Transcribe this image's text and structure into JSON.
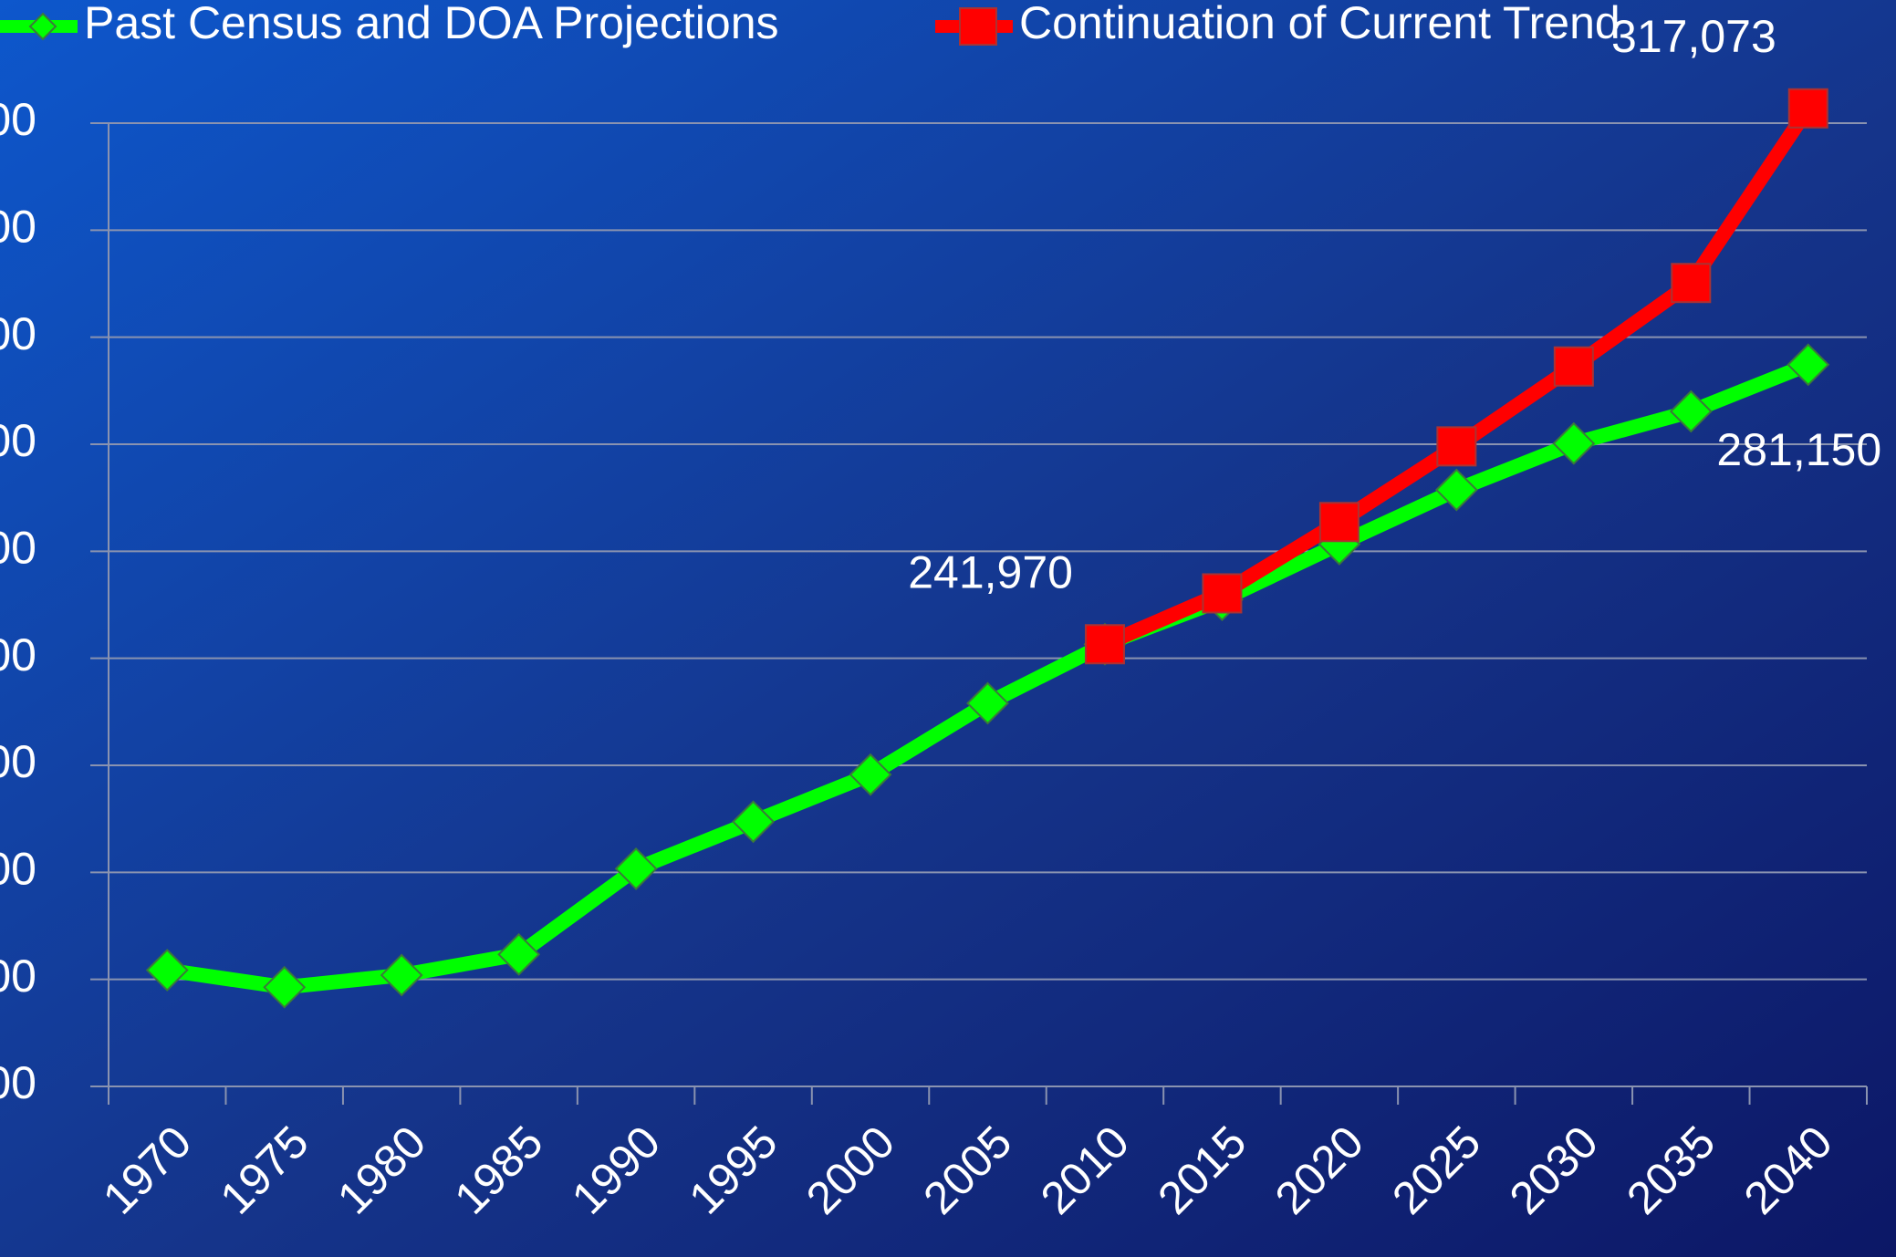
{
  "chart_data": {
    "type": "line",
    "categories": [
      "1970",
      "1975",
      "1980",
      "1985",
      "1990",
      "1995",
      "2000",
      "2005",
      "2010",
      "2015",
      "2020",
      "2025",
      "2030",
      "2035",
      "2040"
    ],
    "series": [
      {
        "name": "Past Census and DOA Projections",
        "color": "#00ff00",
        "marker": "diamond",
        "values": [
          196300,
          193900,
          195600,
          198500,
          210500,
          217100,
          223700,
          233700,
          241970,
          248200,
          256000,
          263600,
          270100,
          274600,
          281150
        ],
        "value_labels": [
          null,
          null,
          null,
          null,
          null,
          null,
          null,
          null,
          null,
          null,
          null,
          null,
          null,
          null,
          "281,150"
        ]
      },
      {
        "name": "Continuation of Current Trend",
        "color": "#ff0000",
        "marker": "square",
        "values": [
          null,
          null,
          null,
          null,
          null,
          null,
          null,
          null,
          241970,
          249100,
          259100,
          269700,
          280900,
          292600,
          317073
        ],
        "value_labels": [
          null,
          null,
          null,
          null,
          null,
          null,
          null,
          null,
          "241,970",
          null,
          null,
          null,
          null,
          null,
          "317,073"
        ]
      }
    ],
    "ylim": [
      180000,
      315000
    ],
    "yticks": [
      {
        "value": 180000,
        "label": "00"
      },
      {
        "value": 195000,
        "label": "00"
      },
      {
        "value": 210000,
        "label": "00"
      },
      {
        "value": 225000,
        "label": "00"
      },
      {
        "value": 240000,
        "label": "00"
      },
      {
        "value": 255000,
        "label": "00"
      },
      {
        "value": 270000,
        "label": "00"
      },
      {
        "value": 285000,
        "label": "00"
      },
      {
        "value": 300000,
        "label": "00"
      },
      {
        "value": 315000,
        "label": "00"
      }
    ],
    "grid": true,
    "legend": "top"
  }
}
